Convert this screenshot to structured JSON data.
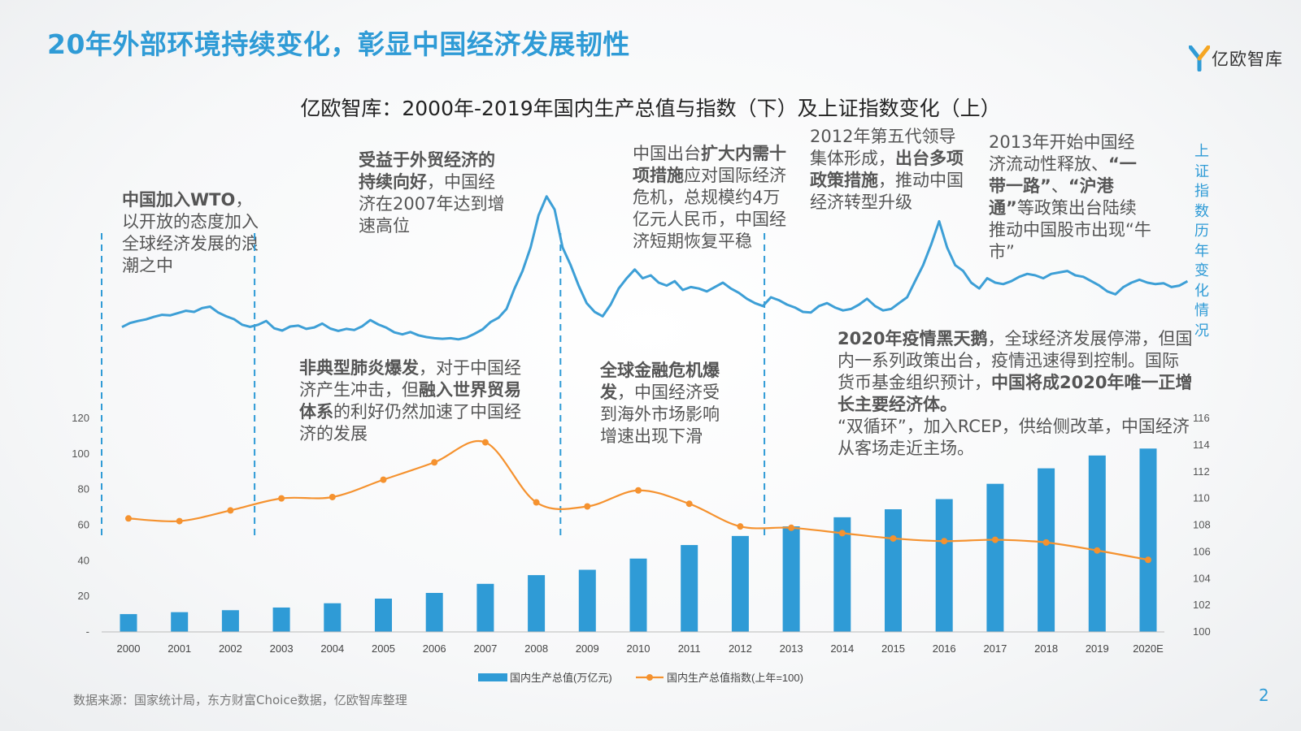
{
  "page": {
    "title": "20年外部环境持续变化，彰显中国经济发展韧性",
    "logo_text": "亿欧智库",
    "subtitle": "亿欧智库：2000年-2019年国内生产总值与指数（下）及上证指数变化（上）",
    "right_axis_vertical_label": "上证指数历年变化情况",
    "source": "数据来源：国家统计局，东方财富Choice数据，亿欧智库整理",
    "page_number": "2"
  },
  "annotations": {
    "wto": {
      "bold": "中国加入WTO",
      "rest": "，以开放的态度加入全球经济发展的浪潮之中"
    },
    "trade": {
      "bold1": "受益于外贸经济的持续向好",
      "rest": "，中国经济在2007年达到增速高位"
    },
    "sars": {
      "bold1": "非典型肺炎爆发",
      "mid": "，对于中国经济产生冲击，但",
      "bold2": "融入世界贸易体系",
      "rest": "的利好仍然加速了中国经济的发展"
    },
    "crisis": {
      "bold1": "全球金融危机爆发",
      "rest": "，中国经济受到海外市场影响增速出现下滑"
    },
    "stimulus": {
      "pre": "中国出台",
      "bold1": "扩大内需十项措施",
      "rest": "应对国际经济危机，总规模约4万亿元人民币，中国经济短期恢复平稳"
    },
    "leadership": {
      "pre": "2012年第五代领导集体形成，",
      "bold1": "出台多项政策措施",
      "rest": "，推动中国经济转型升级"
    },
    "bull": {
      "pre": "2013年开始中国经济流动性释放、",
      "bold1": "“一带一路”",
      "mid": "、",
      "bold2": "“沪港通”",
      "rest": "等政策出台陆续推动中国股市出现“牛市”"
    },
    "covid": {
      "bold1": "2020年疫情黑天鹅",
      "mid1": "，全球经济发展停滞，但国内一系列政策出台，疫情迅速得到控制。国际货币基金组织预计，",
      "bold2": "中国将成2020年唯一正增长主要经济体。",
      "rest": "“双循环”，加入RCEP，供给侧改革，中国经济从客场走近主场。"
    }
  },
  "colors": {
    "title": "#2f9bd6",
    "bar": "#2f9bd6",
    "index_line": "#f5922f",
    "sse_line": "#3d9fd6",
    "dashed": "#2f9bd6"
  },
  "chart_data": [
    {
      "type": "bar",
      "title": "国内生产总值与指数",
      "categories": [
        "2000",
        "2001",
        "2002",
        "2003",
        "2004",
        "2005",
        "2006",
        "2007",
        "2008",
        "2009",
        "2010",
        "2011",
        "2012",
        "2013",
        "2014",
        "2015",
        "2016",
        "2017",
        "2018",
        "2019",
        "2020E"
      ],
      "series": [
        {
          "name": "国内生产总值(万亿元)",
          "kind": "bar",
          "axis": "left",
          "values": [
            10.0,
            11.1,
            12.2,
            13.7,
            16.1,
            18.7,
            21.9,
            27.0,
            31.9,
            34.9,
            41.2,
            48.8,
            53.9,
            59.3,
            64.4,
            68.9,
            74.6,
            83.2,
            91.9,
            99.1,
            103.0
          ]
        },
        {
          "name": "国内生产总值指数(上年=100)",
          "kind": "line",
          "axis": "right",
          "values": [
            108.5,
            108.3,
            109.1,
            110.0,
            110.1,
            111.4,
            112.7,
            114.2,
            109.7,
            109.4,
            110.6,
            109.6,
            107.9,
            107.8,
            107.4,
            107.0,
            106.8,
            106.9,
            106.7,
            106.1,
            105.4
          ]
        }
      ],
      "left_axis": {
        "ylim": [
          0,
          120
        ],
        "ticks": [
          "-",
          "20",
          "40",
          "60",
          "80",
          "100",
          "120"
        ]
      },
      "right_axis": {
        "ylim": [
          100,
          116
        ],
        "ticks": [
          "100",
          "102",
          "104",
          "106",
          "108",
          "110",
          "112",
          "114",
          "116"
        ]
      },
      "legend": [
        "国内生产总值(万亿元)",
        "国内生产总值指数(上年=100)"
      ],
      "legend_position": "bottom"
    },
    {
      "type": "line",
      "title": "上证指数变化",
      "x_start": 2000,
      "x_end": 2020.9,
      "values": [
        1480,
        1620,
        1690,
        1745,
        1830,
        1900,
        1880,
        1960,
        2040,
        2000,
        2130,
        2180,
        1980,
        1850,
        1750,
        1560,
        1490,
        1560,
        1690,
        1440,
        1360,
        1500,
        1530,
        1420,
        1470,
        1600,
        1430,
        1350,
        1420,
        1380,
        1510,
        1720,
        1570,
        1460,
        1300,
        1230,
        1310,
        1200,
        1140,
        1100,
        1080,
        1100,
        1060,
        1120,
        1250,
        1400,
        1650,
        1800,
        2100,
        2800,
        3400,
        4200,
        5300,
        5950,
        5500,
        4200,
        3600,
        2900,
        2300,
        2000,
        1850,
        2250,
        2800,
        3150,
        3450,
        3150,
        3250,
        3000,
        2900,
        3050,
        2750,
        2850,
        2800,
        2700,
        2850,
        3000,
        2800,
        2650,
        2450,
        2300,
        2200,
        2500,
        2400,
        2250,
        2150,
        2000,
        1980,
        2200,
        2300,
        2150,
        2050,
        2100,
        2250,
        2450,
        2200,
        2050,
        2100,
        2300,
        2500,
        3050,
        3600,
        4300,
        5100,
        4200,
        3600,
        3400,
        3000,
        2800,
        3150,
        3000,
        2950,
        3050,
        3200,
        3300,
        3250,
        3150,
        3300,
        3350,
        3400,
        3250,
        3200,
        3050,
        2900,
        2700,
        2600,
        2850,
        3000,
        3100,
        3000,
        2950,
        2980,
        2850,
        2900,
        3050
      ],
      "dashed_marker_years": [
        2000,
        2003,
        2009,
        2013
      ]
    }
  ]
}
